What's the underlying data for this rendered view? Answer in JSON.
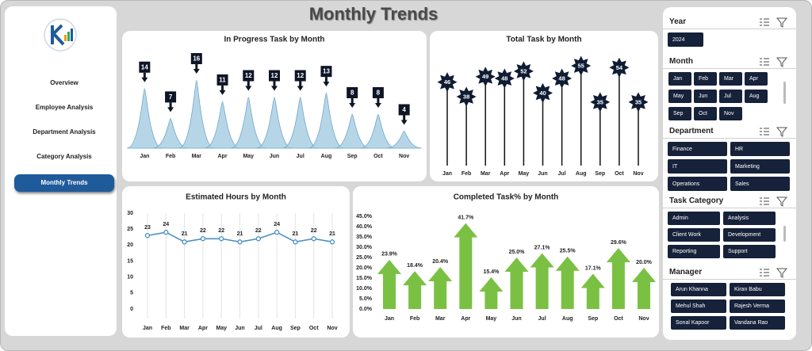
{
  "header": {
    "title": "Monthly Trends"
  },
  "nav": [
    "Overview",
    "Employee Analysis",
    "Department Analysis",
    "Category Analysis",
    "Monthly Trends"
  ],
  "slicers": [
    {
      "title": "Year",
      "items": [
        "2024"
      ]
    },
    {
      "title": "Month",
      "items": [
        "Jan",
        "Feb",
        "Mar",
        "Apr",
        "May",
        "Jun",
        "Jul",
        "Aug",
        "Sep",
        "Oct",
        "Nov"
      ]
    },
    {
      "title": "Department",
      "items": [
        "Finance",
        "HR",
        "IT",
        "Marketing",
        "Operations",
        "Sales"
      ]
    },
    {
      "title": "Task Category",
      "items": [
        "Admin",
        "Analysis",
        "Client Work",
        "Development",
        "Reporting",
        "Support"
      ]
    },
    {
      "title": "Manager",
      "items": [
        "Arun Khanna",
        "Kiran Babu",
        "Mehul Shah",
        "Rajesh Verma",
        "Sonal Kapoor",
        "Vandana Rao"
      ]
    }
  ],
  "chart_data": [
    {
      "type": "area",
      "title": "In Progress Task by Month",
      "categories": [
        "Jan",
        "Feb",
        "Mar",
        "Apr",
        "May",
        "Jun",
        "Jul",
        "Aug",
        "Sep",
        "Oct",
        "Nov"
      ],
      "values": [
        14,
        7,
        16,
        11,
        12,
        12,
        12,
        13,
        8,
        8,
        4
      ],
      "color": "#a9cfe4"
    },
    {
      "type": "lollipop",
      "title": "Total Task by Month",
      "categories": [
        "Jan",
        "Feb",
        "Mar",
        "Apr",
        "May",
        "Jun",
        "Jul",
        "Aug",
        "Sep",
        "Oct",
        "Nov"
      ],
      "values": [
        46,
        38,
        49,
        48,
        52,
        40,
        48,
        55,
        35,
        54,
        35
      ],
      "color": "#0f1c33"
    },
    {
      "type": "line",
      "title": "Estimated Hours by Month",
      "categories": [
        "Jan",
        "Feb",
        "Mar",
        "Apr",
        "May",
        "Jun",
        "Jul",
        "Aug",
        "Sep",
        "Oct",
        "Nov"
      ],
      "values": [
        23,
        24,
        21,
        22,
        22,
        21,
        22,
        24,
        21,
        22,
        21
      ],
      "color": "#4a90c2",
      "ylim": [
        0,
        30
      ],
      "yticks": [
        0,
        5,
        10,
        15,
        20,
        25,
        30
      ]
    },
    {
      "type": "arrow",
      "title": "Completed Task% by Month",
      "categories": [
        "Jan",
        "Feb",
        "Mar",
        "Apr",
        "May",
        "Jun",
        "Jul",
        "Aug",
        "Sep",
        "Oct",
        "Nov"
      ],
      "values": [
        23.9,
        18.4,
        20.4,
        41.7,
        15.4,
        25.0,
        27.1,
        25.5,
        17.1,
        29.6,
        20.0
      ],
      "value_labels": [
        "23.9%",
        "18.4%",
        "20.4%",
        "41.7%",
        "15.4%",
        "25.0%",
        "27.1%",
        "25.5%",
        "17.1%",
        "29.6%",
        "20.0%"
      ],
      "color": "#7ac143",
      "ylim": [
        0,
        45
      ],
      "yticks": [
        {
          "value": 0,
          "label": "0.0%"
        },
        {
          "value": 5,
          "label": "5.0%"
        },
        {
          "value": 10,
          "label": "10.0%"
        },
        {
          "value": 15,
          "label": "15.0%"
        },
        {
          "value": 20,
          "label": "20.0%"
        },
        {
          "value": 25,
          "label": "25.0%"
        },
        {
          "value": 30,
          "label": "30.0%"
        },
        {
          "value": 35,
          "label": "35.0%"
        },
        {
          "value": 40,
          "label": "40.0%"
        },
        {
          "value": 45,
          "label": "45.0%"
        }
      ]
    }
  ]
}
